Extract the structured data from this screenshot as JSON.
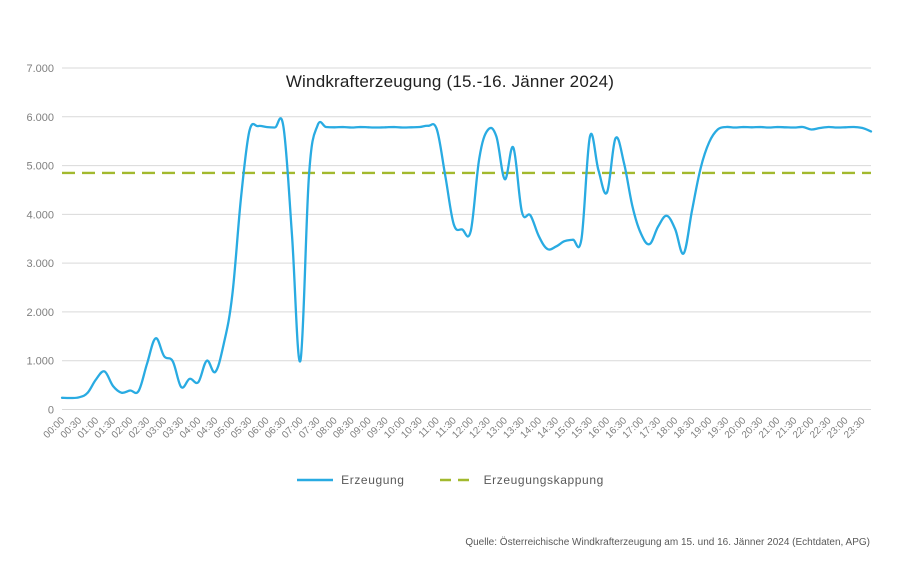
{
  "title": "Windkrafterzeugung (15.-16. Jänner 2024)",
  "source": "Quelle: Österreichische Windkrafterzeugung am 15. und 16. Jänner 2024 (Echtdaten, APG)",
  "legend": {
    "erzeugung": "Erzeugung",
    "erzeugungskappung": "Erzeugungskappung"
  },
  "colors": {
    "erzeugung": "#29abe2",
    "kappung": "#a2b92e",
    "grid": "#d9d9d9",
    "axis_text": "#7f7f7f",
    "title_text": "#1f1f1f",
    "source_text": "#595959"
  },
  "chart_data": {
    "type": "line",
    "title": "Windkrafterzeugung (15.-16. Jänner 2024)",
    "xlabel": "",
    "ylabel": "",
    "grid": "horizontal",
    "legend_position": "bottom",
    "x_axis": {
      "start": "00:00",
      "step_minutes": 15,
      "points_per_tick": 2,
      "tick_labels": [
        "00:00",
        "00:30",
        "01:00",
        "01:30",
        "02:00",
        "02:30",
        "03:00",
        "03:30",
        "04:00",
        "04:30",
        "05:00",
        "05:30",
        "06:00",
        "06:30",
        "07:00",
        "07:30",
        "08:00",
        "08:30",
        "09:00",
        "09:30",
        "10:00",
        "10:30",
        "11:00",
        "11:30",
        "12:00",
        "12:30",
        "13:00",
        "13:30",
        "14:00",
        "14:30",
        "15:00",
        "15:30",
        "16:00",
        "16:30",
        "17:00",
        "17:30",
        "18:00",
        "18:30",
        "19:00",
        "19:30",
        "20:00",
        "20:30",
        "21:00",
        "21:30",
        "22:00",
        "22:30",
        "23:00",
        "23:30"
      ]
    },
    "y_axis": {
      "min": 0,
      "max": 7000,
      "gridline_step": 1000,
      "tick_labels": [
        "0",
        "1.000",
        "2.000",
        "3.000",
        "4.000",
        "5.000",
        "6.000",
        "7.000"
      ]
    },
    "series": [
      {
        "name": "Erzeugung",
        "style": "solid",
        "color": "#29abe2",
        "values": [
          240,
          235,
          250,
          340,
          620,
          780,
          480,
          345,
          390,
          380,
          950,
          1460,
          1090,
          990,
          460,
          630,
          560,
          1000,
          770,
          1350,
          2350,
          4300,
          5700,
          5810,
          5790,
          5780,
          5800,
          3600,
          1000,
          4800,
          5820,
          5790,
          5785,
          5790,
          5780,
          5790,
          5785,
          5780,
          5785,
          5790,
          5780,
          5785,
          5790,
          5815,
          5750,
          4800,
          3800,
          3690,
          3660,
          5150,
          5730,
          5600,
          4720,
          5370,
          4050,
          3980,
          3550,
          3290,
          3340,
          3450,
          3480,
          3500,
          5600,
          4900,
          4450,
          5560,
          5050,
          4150,
          3600,
          3390,
          3750,
          3970,
          3700,
          3200,
          4100,
          4950,
          5480,
          5740,
          5790,
          5780,
          5790,
          5785,
          5790,
          5780,
          5790,
          5785,
          5780,
          5790,
          5740,
          5770,
          5790,
          5780,
          5785,
          5790,
          5770,
          5700
        ]
      },
      {
        "name": "Erzeugungskappung",
        "style": "dashed",
        "color": "#a2b92e",
        "constant_value": 4850
      }
    ]
  }
}
